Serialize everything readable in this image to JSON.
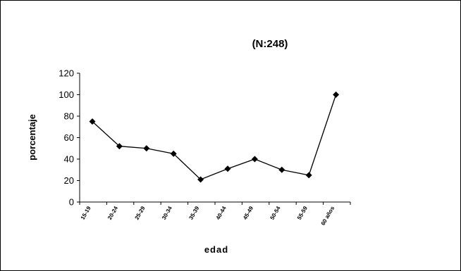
{
  "chart_data": {
    "type": "line",
    "title": "(N:248)",
    "xlabel": "edad",
    "ylabel": "porcentaje",
    "categories": [
      "15-19",
      "20-24",
      "25-29",
      "30-34",
      "35-39",
      "40-44",
      "45-49",
      "50-54",
      "55-59",
      "60 años"
    ],
    "series": [
      {
        "values": [
          75,
          52,
          50,
          45,
          21,
          31,
          40,
          30,
          25,
          100
        ]
      }
    ],
    "ylim": [
      0,
      120
    ],
    "yticks": [
      0,
      20,
      40,
      60,
      80,
      100,
      120
    ],
    "grid": false,
    "legend": "none",
    "colors": {
      "line": "#000000",
      "marker": "#000000",
      "axis": "#000000"
    },
    "marker": "diamond"
  }
}
